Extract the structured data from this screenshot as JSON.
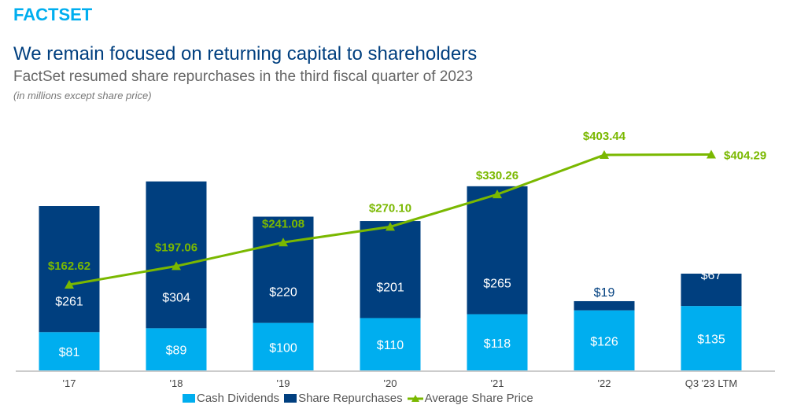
{
  "logo": "FACTSET",
  "title": "We remain focused on returning capital to shareholders",
  "subtitle": "FactSet resumed share repurchases in the third fiscal quarter of 2023",
  "note": "(in millions except share price)",
  "colors": {
    "dividends": "#00aeef",
    "repurchases": "#003f7f",
    "price": "#7ab800"
  },
  "chart_data": {
    "type": "bar",
    "stacked": true,
    "categories": [
      "'17",
      "'18",
      "'19",
      "'20",
      "'21",
      "'22",
      "Q3 '23 LTM"
    ],
    "series": [
      {
        "name": "Cash Dividends",
        "values": [
          81,
          89,
          100,
          110,
          118,
          126,
          135
        ],
        "labels": [
          "$81",
          "$89",
          "$100",
          "$110",
          "$118",
          "$126",
          "$135"
        ]
      },
      {
        "name": "Share Repurchases",
        "values": [
          261,
          304,
          220,
          201,
          265,
          19,
          67
        ],
        "labels": [
          "$261",
          "$304",
          "$220",
          "$201",
          "$265",
          "$19",
          "$67"
        ]
      },
      {
        "name": "Average Share Price",
        "type": "line",
        "values": [
          162.62,
          197.06,
          241.08,
          270.1,
          330.26,
          403.44,
          404.29
        ],
        "labels": [
          "$162.62",
          "$197.06",
          "$241.08",
          "$270.10",
          "$330.26",
          "$403.44",
          "$404.29"
        ]
      }
    ],
    "legend_position": "bottom",
    "grid": false
  }
}
